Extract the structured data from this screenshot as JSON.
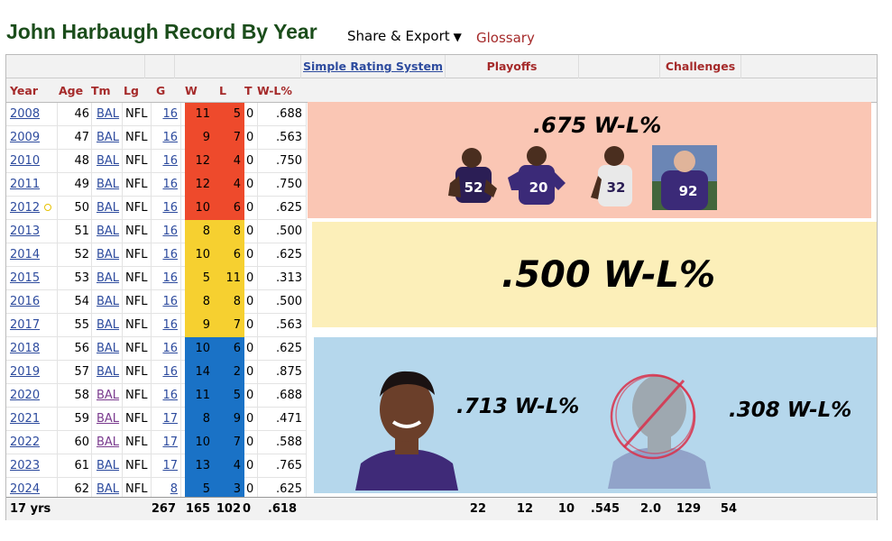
{
  "header": {
    "title": "John Harbaugh Record By Year",
    "share_label": "Share & Export",
    "glossary_label": "Glossary"
  },
  "over_header": {
    "srs": "Simple Rating System",
    "playoffs": "Playoffs",
    "challenges": "Challenges"
  },
  "columns": {
    "year": "Year",
    "age": "Age",
    "tm": "Tm",
    "lg": "Lg",
    "g": "G",
    "w": "W",
    "l": "L",
    "t": "T",
    "pct": "W-L%"
  },
  "rows": [
    {
      "year": "2008",
      "age": "46",
      "tm": "BAL",
      "lg": "NFL",
      "g": "16",
      "w": "11",
      "l": "5",
      "t": "0",
      "pct": ".688"
    },
    {
      "year": "2009",
      "age": "47",
      "tm": "BAL",
      "lg": "NFL",
      "g": "16",
      "w": "9",
      "l": "7",
      "t": "0",
      "pct": ".563"
    },
    {
      "year": "2010",
      "age": "48",
      "tm": "BAL",
      "lg": "NFL",
      "g": "16",
      "w": "12",
      "l": "4",
      "t": "0",
      "pct": ".750"
    },
    {
      "year": "2011",
      "age": "49",
      "tm": "BAL",
      "lg": "NFL",
      "g": "16",
      "w": "12",
      "l": "4",
      "t": "0",
      "pct": ".750"
    },
    {
      "year": "2012",
      "age": "50",
      "tm": "BAL",
      "lg": "NFL",
      "g": "16",
      "w": "10",
      "l": "6",
      "t": "0",
      "pct": ".625"
    },
    {
      "year": "2013",
      "age": "51",
      "tm": "BAL",
      "lg": "NFL",
      "g": "16",
      "w": "8",
      "l": "8",
      "t": "0",
      "pct": ".500"
    },
    {
      "year": "2014",
      "age": "52",
      "tm": "BAL",
      "lg": "NFL",
      "g": "16",
      "w": "10",
      "l": "6",
      "t": "0",
      "pct": ".625"
    },
    {
      "year": "2015",
      "age": "53",
      "tm": "BAL",
      "lg": "NFL",
      "g": "16",
      "w": "5",
      "l": "11",
      "t": "0",
      "pct": ".313"
    },
    {
      "year": "2016",
      "age": "54",
      "tm": "BAL",
      "lg": "NFL",
      "g": "16",
      "w": "8",
      "l": "8",
      "t": "0",
      "pct": ".500"
    },
    {
      "year": "2017",
      "age": "55",
      "tm": "BAL",
      "lg": "NFL",
      "g": "16",
      "w": "9",
      "l": "7",
      "t": "0",
      "pct": ".563"
    },
    {
      "year": "2018",
      "age": "56",
      "tm": "BAL",
      "lg": "NFL",
      "g": "16",
      "w": "10",
      "l": "6",
      "t": "0",
      "pct": ".625"
    },
    {
      "year": "2019",
      "age": "57",
      "tm": "BAL",
      "lg": "NFL",
      "g": "16",
      "w": "14",
      "l": "2",
      "t": "0",
      "pct": ".875"
    },
    {
      "year": "2020",
      "age": "58",
      "tm": "BAL",
      "lg": "NFL",
      "g": "16",
      "w": "11",
      "l": "5",
      "t": "0",
      "pct": ".688"
    },
    {
      "year": "2021",
      "age": "59",
      "tm": "BAL",
      "lg": "NFL",
      "g": "17",
      "w": "8",
      "l": "9",
      "t": "0",
      "pct": ".471"
    },
    {
      "year": "2022",
      "age": "60",
      "tm": "BAL",
      "lg": "NFL",
      "g": "17",
      "w": "10",
      "l": "7",
      "t": "0",
      "pct": ".588"
    },
    {
      "year": "2023",
      "age": "61",
      "tm": "BAL",
      "lg": "NFL",
      "g": "17",
      "w": "13",
      "l": "4",
      "t": "0",
      "pct": ".765"
    },
    {
      "year": "2024",
      "age": "62",
      "tm": "BAL",
      "lg": "NFL",
      "g": "8",
      "w": "5",
      "l": "3",
      "t": "0",
      "pct": ".625"
    }
  ],
  "footer": {
    "label": "17 yrs",
    "g": "267",
    "w": "165",
    "l": "102",
    "t": "0",
    "pct": ".618",
    "p1": "22",
    "p2": "12",
    "p3": "10",
    "p4": ".545",
    "p5": "2.0",
    "p6": "129",
    "p7": "54"
  },
  "overlays": {
    "era1": ".675 W-L%",
    "era2": ".500 W-L%",
    "era3a": ".713 W-L%",
    "era3b": ".308 W-L%"
  },
  "players_era1": [
    "52",
    "20",
    "32",
    "92"
  ],
  "colors": {
    "red_band": "#ee4a2c",
    "yellow_band": "#f6d030",
    "blue_band": "#1a72c6",
    "ravens_purple": "#3f2a78"
  }
}
